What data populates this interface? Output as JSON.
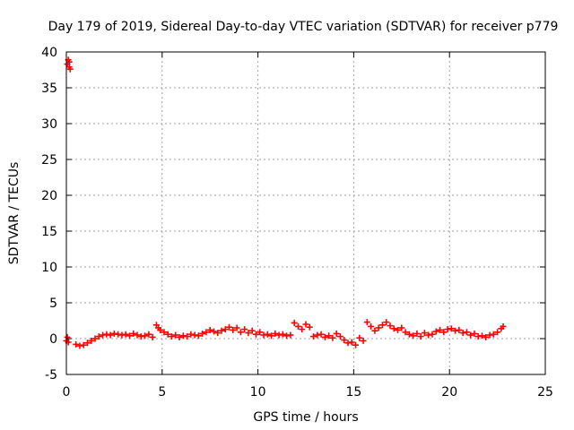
{
  "chart_data": {
    "type": "scatter",
    "title": "Day 179 of 2019, Sidereal Day-to-day VTEC variation (SDTVAR) for receiver p779",
    "xlabel": "GPS time / hours",
    "ylabel": "SDTVAR / TECUs",
    "xlim": [
      0,
      25
    ],
    "ylim": [
      -5,
      40
    ],
    "xticks": [
      0,
      5,
      10,
      15,
      20,
      25
    ],
    "yticks": [
      -5,
      0,
      5,
      10,
      15,
      20,
      25,
      30,
      35,
      40
    ],
    "xtick_labels": [
      "0",
      "5",
      "10",
      "15",
      "20",
      "25"
    ],
    "ytick_labels": [
      "-5",
      "0",
      "5",
      "10",
      "15",
      "20",
      "25",
      "30",
      "35",
      "40"
    ],
    "grid": true,
    "marker": "plus",
    "color": "#ff0000",
    "series": [
      {
        "name": "SDTVAR",
        "x": [
          0.0,
          0.05,
          0.1,
          0.15,
          0.2,
          0.05,
          0.1,
          0.15,
          0.5,
          0.7,
          0.9,
          1.1,
          1.3,
          1.5,
          1.7,
          1.9,
          2.1,
          2.3,
          2.5,
          2.7,
          2.9,
          3.1,
          3.3,
          3.5,
          3.7,
          3.9,
          4.1,
          4.3,
          4.5,
          4.7,
          4.8,
          4.9,
          5.1,
          5.3,
          5.5,
          5.7,
          5.9,
          6.1,
          6.3,
          6.5,
          6.7,
          6.9,
          7.1,
          7.3,
          7.5,
          7.7,
          7.9,
          8.1,
          8.3,
          8.5,
          8.7,
          8.9,
          9.1,
          9.3,
          9.5,
          9.7,
          9.9,
          10.1,
          10.3,
          10.5,
          10.7,
          10.9,
          11.1,
          11.3,
          11.5,
          11.7,
          11.9,
          12.1,
          12.3,
          12.5,
          12.7,
          12.9,
          13.1,
          13.3,
          13.5,
          13.7,
          13.9,
          14.1,
          14.3,
          14.5,
          14.7,
          14.9,
          15.1,
          15.3,
          15.5,
          15.7,
          15.9,
          16.1,
          16.3,
          16.5,
          16.7,
          16.9,
          17.1,
          17.3,
          17.5,
          17.7,
          17.9,
          18.1,
          18.3,
          18.5,
          18.7,
          18.9,
          19.1,
          19.3,
          19.5,
          19.7,
          19.9,
          20.1,
          20.3,
          20.5,
          20.7,
          20.9,
          21.1,
          21.3,
          21.5,
          21.7,
          21.9,
          22.1,
          22.3,
          22.5,
          22.7,
          22.8
        ],
        "y": [
          -0.3,
          0.2,
          -0.5,
          38.6,
          37.6,
          38.3,
          38.9,
          37.9,
          -0.8,
          -1.0,
          -0.9,
          -0.6,
          -0.3,
          0.0,
          0.3,
          0.5,
          0.6,
          0.5,
          0.7,
          0.6,
          0.5,
          0.6,
          0.4,
          0.7,
          0.5,
          0.3,
          0.4,
          0.6,
          0.2,
          1.9,
          1.5,
          1.2,
          0.9,
          0.6,
          0.3,
          0.5,
          0.2,
          0.4,
          0.3,
          0.6,
          0.5,
          0.4,
          0.7,
          0.9,
          1.2,
          1.0,
          0.8,
          1.1,
          1.3,
          1.6,
          1.2,
          1.5,
          0.9,
          1.3,
          0.8,
          1.1,
          0.6,
          0.9,
          0.5,
          0.6,
          0.4,
          0.7,
          0.5,
          0.6,
          0.4,
          0.5,
          2.2,
          1.7,
          1.3,
          2.0,
          1.6,
          0.3,
          0.5,
          0.6,
          0.2,
          0.4,
          0.1,
          0.7,
          0.3,
          -0.2,
          -0.6,
          -0.5,
          -0.9,
          0.1,
          -0.3,
          2.3,
          1.7,
          1.1,
          1.5,
          1.9,
          2.3,
          1.8,
          1.4,
          1.2,
          1.5,
          0.9,
          0.6,
          0.4,
          0.7,
          0.3,
          0.8,
          0.5,
          0.6,
          1.0,
          1.2,
          0.9,
          1.3,
          1.4,
          1.1,
          1.2,
          0.8,
          0.9,
          0.5,
          0.7,
          0.3,
          0.4,
          0.2,
          0.5,
          0.6,
          0.9,
          1.4,
          1.7
        ]
      }
    ]
  }
}
